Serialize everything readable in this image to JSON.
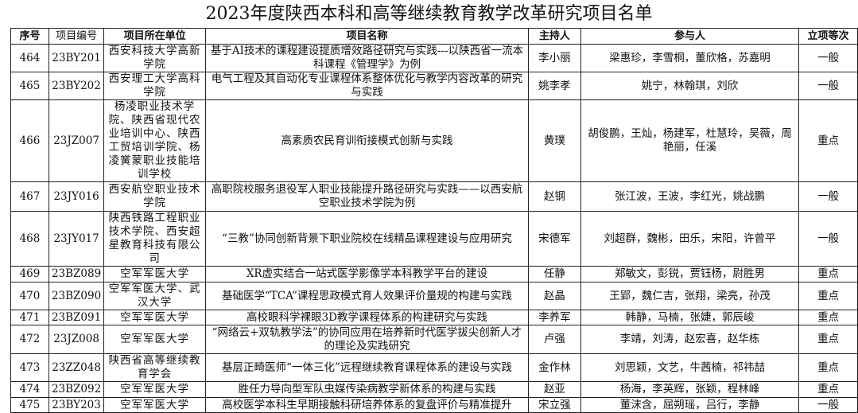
{
  "title": "2023年度陕西本科和高等继续教育教学改革研究项目名单",
  "headers": [
    "序号",
    "项目编号",
    "项目所在单位",
    "项目名称",
    "主持人",
    "参与人",
    "立项等次"
  ],
  "rows": [
    {
      "no": "464",
      "code": "23BY201",
      "unit": "西安科技大学高新学院",
      "name": "基于AI技术的课程建设提质增效路径研究与实践---以陕西省一流本科课程《管理学》为例",
      "leader": "李小丽",
      "members": "梁惠珍，李雪桐，董欣格，苏嘉明",
      "level": "一般"
    },
    {
      "no": "465",
      "code": "23BY202",
      "unit": "西安理工大学高科学院",
      "name": "电气工程及其自动化专业课程体系整体优化与教学内容改革的研究与实践",
      "leader": "姚李孝",
      "members": "姚宁，林翰琪，刘欣",
      "level": "一般"
    },
    {
      "no": "466",
      "code": "23JZ007",
      "unit": "杨凌职业技术学院、陕西省现代农业培训中心、陕西工贸培训学院、杨凌黉蒙职业技能培训学校",
      "name": "高素质农民育训衔接模式创新与实践",
      "leader": "黄璞",
      "members": "胡俊鹏，王灿，杨建军，杜慧玲，吴薇，周艳丽，任溪",
      "level": "重点"
    },
    {
      "no": "467",
      "code": "23JY016",
      "unit": "西安航空职业技术学院",
      "name": "高职院校服务退役军人职业技能提升路径研究与实践——以西安航空职业技术学院为例",
      "leader": "赵钢",
      "members": "张江波，王波，李红光，姚战鹏",
      "level": "一般"
    },
    {
      "no": "468",
      "code": "23JY017",
      "unit": "陕西铁路工程职业技术学院、西安超星教育科技有限公司",
      "name": "“三教”协同创新背景下职业院校在线精品课程建设与应用研究",
      "leader": "宋德军",
      "members": "刘超群，魏彬，田乐，宋阳，许曾平",
      "level": "一般"
    },
    {
      "no": "469",
      "code": "23BZ089",
      "unit": "空军军医大学",
      "name": "XR虚实结合一站式医学影像学本科教学平台的建设",
      "leader": "任静",
      "members": "郑敏文，彭锐，贾钰杨，尉胜男",
      "level": "重点"
    },
    {
      "no": "470",
      "code": "23BZ090",
      "unit": "空军军医大学、武汉大学",
      "name": "基础医学“TCA”课程思政模式育人效果评价量规的构建与实践",
      "leader": "赵晶",
      "members": "王郢，魏仁吉，张翔，梁亮，孙茂",
      "level": "重点"
    },
    {
      "no": "471",
      "code": "23BZ091",
      "unit": "空军军医大学",
      "name": "高校眼科学裸眼3D教学课程体系的构建研究与实践",
      "leader": "李养军",
      "members": "韩静，马楠，张婕，郭辰峻",
      "level": "重点"
    },
    {
      "no": "472",
      "code": "23JZ008",
      "unit": "空军军医大学",
      "name": "“网络云+双轨教学法”的协同应用在培养新时代医学拔尖创新人才的理论及实践研究",
      "leader": "卢强",
      "members": "李靖，刘涛，赵宏喜，赵华栋",
      "level": "重点"
    },
    {
      "no": "473",
      "code": "23ZZ048",
      "unit": "陕西省高等继续教育学会",
      "name": "基层正畸医师“一体三化”远程继续教育课程体系的建设与实践",
      "leader": "金作林",
      "members": "刘思颖，文艺，牛茜楠，祁祎喆",
      "level": "重点"
    },
    {
      "no": "474",
      "code": "23BZ092",
      "unit": "空军军医大学",
      "name": "胜任力导向型军队虫媒传染病教学新体系的构建与实践",
      "leader": "赵亚",
      "members": "杨海，李英辉，张颖，程林峰",
      "level": "重点"
    },
    {
      "no": "475",
      "code": "23BY203",
      "unit": "空军军医大学",
      "name": "高校医学本科生早期接触科研培养体系的复盘评价与精准提升",
      "leader": "宋立强",
      "members": "董沫含，屈朔瑶，吕行，李静",
      "level": "一般"
    }
  ]
}
